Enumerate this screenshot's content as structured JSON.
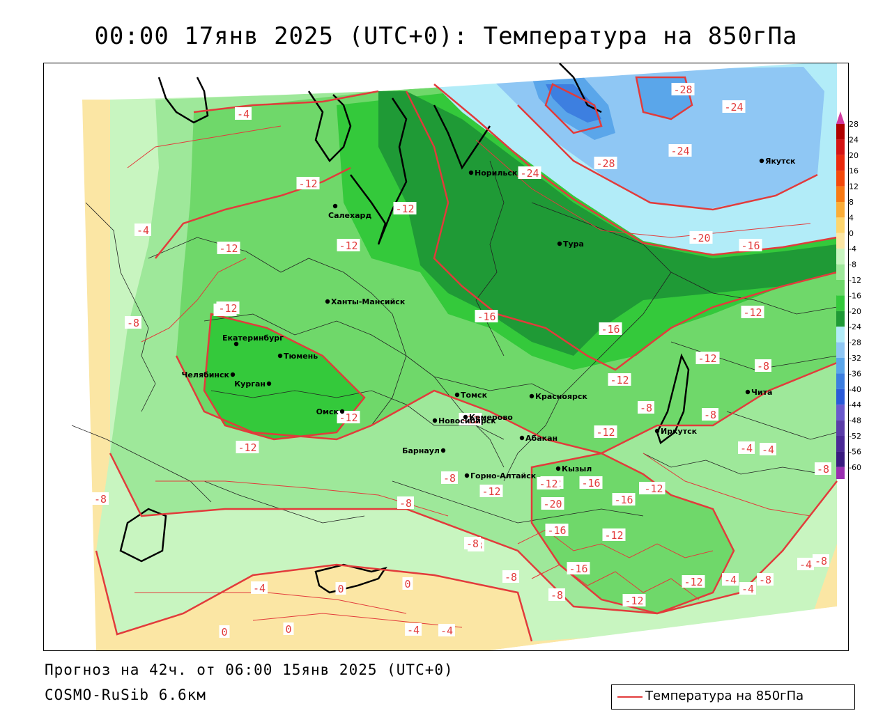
{
  "title": "00:00 17янв 2025 (UTC+0): Температура на 850гПа",
  "forecast_text": "Прогноз на 42ч. от 06:00 15янв 2025 (UTC+0)",
  "model_text": "COSMO-RuSib 6.6км",
  "legend_label": "Температура на 850гПа",
  "colors": {
    "isotherm": "#e23b3b",
    "warm_0": "#fbe6a4",
    "warm_4": "#fdd66e",
    "band_m4": "#c8f5c0",
    "band_m8": "#9ee89a",
    "band_m12": "#6fd86a",
    "band_m16": "#34c93b",
    "band_m20": "#1f9a36",
    "cold_m24": "#b2ecf8",
    "cold_m28": "#8fc7f4",
    "cold_m32": "#5aa6ea",
    "cold_m36": "#3d7fe0"
  },
  "color_scale": {
    "ticks": [
      "28",
      "24",
      "20",
      "16",
      "12",
      "8",
      "4",
      "0",
      "-4",
      "-8",
      "-12",
      "-16",
      "-20",
      "-24",
      "-28",
      "-32",
      "-36",
      "-40",
      "-44",
      "-48",
      "-52",
      "-56",
      "-60"
    ],
    "colors": [
      "#b00000",
      "#d51414",
      "#ea2a0e",
      "#f44a0c",
      "#f87a14",
      "#fbae38",
      "#fdd66e",
      "#fbe6a4",
      "#c8f5c0",
      "#9ee89a",
      "#6fd86a",
      "#34c93b",
      "#1f9a36",
      "#b2ecf8",
      "#8fc7f4",
      "#5aa6ea",
      "#3d7fe0",
      "#2b5bd8",
      "#6a5acd",
      "#5b3ea8",
      "#4b2a96",
      "#3a1c80",
      "#9a2fb0"
    ],
    "top_arrow_color": "#d23aa0",
    "bottom_arrow_color": "#8a3ab8"
  },
  "cities": [
    {
      "name": "Норильск"
    },
    {
      "name": "Якутск"
    },
    {
      "name": "Салехард"
    },
    {
      "name": "Тура"
    },
    {
      "name": "Ханты-Мансийск"
    },
    {
      "name": "Екатеринбург"
    },
    {
      "name": "Тюмень"
    },
    {
      "name": "Челябинск"
    },
    {
      "name": "Курган"
    },
    {
      "name": "Омск"
    },
    {
      "name": "Томск"
    },
    {
      "name": "Красноярск"
    },
    {
      "name": "Новосибирск"
    },
    {
      "name": "Кемерово"
    },
    {
      "name": "Барнаул"
    },
    {
      "name": "Абакан"
    },
    {
      "name": "Иркутск"
    },
    {
      "name": "Чита"
    },
    {
      "name": "Горно-Алтайск"
    },
    {
      "name": "Кызыл"
    }
  ],
  "isotherm_labels": [
    "-4",
    "-12",
    "-4",
    "-12",
    "-12",
    "-12",
    "-8",
    "-16",
    "-24",
    "-28",
    "-24",
    "-28",
    "-24",
    "-20",
    "-16",
    "-16",
    "-16",
    "-12",
    "-12",
    "-12",
    "-8",
    "-12",
    "-12",
    "-8",
    "-8",
    "-12",
    "-4",
    "-12",
    "-8",
    "-12",
    "-12",
    "-8",
    "-8",
    "-12",
    "-20",
    "-16",
    "-16",
    "-12",
    "-8",
    "-12",
    "-16",
    "-12",
    "-16",
    "-8",
    "-4",
    "-4",
    "-8",
    "0",
    "0",
    "0",
    "-4",
    "0",
    "-4",
    "-4",
    "-8",
    "-12",
    "-8",
    "-12",
    "-4",
    "-8",
    "-4",
    "-8",
    "-12",
    "-8"
  ]
}
